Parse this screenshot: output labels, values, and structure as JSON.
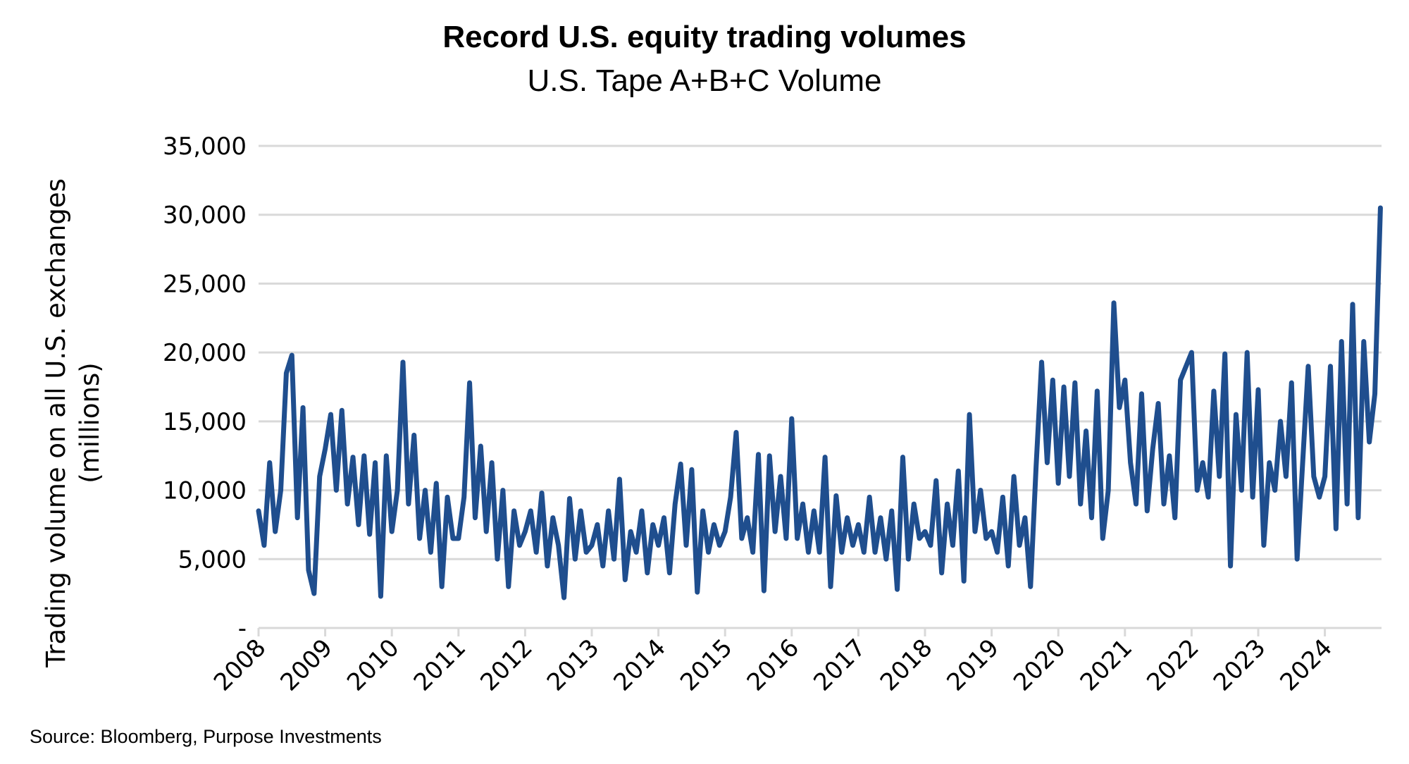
{
  "chart_data": {
    "type": "line",
    "title": "Record U.S. equity trading volumes",
    "subtitle": "U.S. Tape A+B+C Volume",
    "xlabel": "",
    "ylabel": "Trading volume on all U.S. exchanges",
    "ylabel_unit": "(millions)",
    "ylim": [
      0,
      35000
    ],
    "xlim": [
      2008,
      2024.85
    ],
    "y_ticks": [
      0,
      5000,
      10000,
      15000,
      20000,
      25000,
      30000,
      35000
    ],
    "y_tick_labels": [
      "-",
      "5,000",
      "10,000",
      "15,000",
      "20,000",
      "25,000",
      "30,000",
      "35,000"
    ],
    "x_tick_labels": [
      "2008",
      "2009",
      "2010",
      "2011",
      "2012",
      "2013",
      "2014",
      "2015",
      "2016",
      "2017",
      "2018",
      "2019",
      "2020",
      "2021",
      "2022",
      "2023",
      "2024"
    ],
    "grid": "horizontal",
    "legend": "none",
    "line_color": "#1f4e8e",
    "grid_color": "#d9d9d9",
    "series_by_year_monthly": [
      {
        "year": 2008,
        "values": [
          8500,
          6000,
          12000,
          7000,
          10000,
          18500,
          19800,
          8000,
          16000,
          4200,
          2500,
          11000
        ]
      },
      {
        "year": 2009,
        "values": [
          13000,
          15500,
          10000,
          15800,
          9000,
          12400,
          7500,
          12500,
          6800,
          12000,
          2300,
          12500
        ]
      },
      {
        "year": 2010,
        "values": [
          7000,
          10000,
          19300,
          9000,
          14000,
          6500,
          10000,
          5500,
          10500,
          3000,
          9500,
          6500
        ]
      },
      {
        "year": 2011,
        "values": [
          6500,
          9500,
          17800,
          8000,
          13200,
          7000,
          12000,
          5000,
          10000,
          3000,
          8500,
          6000
        ]
      },
      {
        "year": 2012,
        "values": [
          7000,
          8500,
          5500,
          9800,
          4500,
          8000,
          6000,
          2200,
          9400,
          5000,
          8500,
          5500
        ]
      },
      {
        "year": 2013,
        "values": [
          6000,
          7500,
          4500,
          8500,
          5000,
          10800,
          3500,
          7000,
          5500,
          8500,
          4000,
          7500
        ]
      },
      {
        "year": 2014,
        "values": [
          6000,
          8000,
          4000,
          9000,
          11900,
          6000,
          11500,
          2600,
          8500,
          5500,
          7500,
          6000
        ]
      },
      {
        "year": 2015,
        "values": [
          7000,
          9500,
          14200,
          6500,
          8000,
          5500,
          12600,
          2700,
          12500,
          7000,
          11000,
          6500
        ]
      },
      {
        "year": 2016,
        "values": [
          15200,
          6500,
          9000,
          5500,
          8500,
          5500,
          12400,
          3000,
          9600,
          5500,
          8000,
          6000
        ]
      },
      {
        "year": 2017,
        "values": [
          7500,
          5500,
          9500,
          5500,
          8000,
          5000,
          8500,
          2800,
          12400,
          5000,
          9000,
          6500
        ]
      },
      {
        "year": 2018,
        "values": [
          7000,
          6000,
          10700,
          4000,
          9000,
          6000,
          11400,
          3400,
          15500,
          7000,
          10000,
          6500
        ]
      },
      {
        "year": 2019,
        "values": [
          7000,
          5500,
          9500,
          4500,
          11000,
          6000,
          8000,
          3000,
          11700,
          19300,
          12000,
          18000
        ]
      },
      {
        "year": 2020,
        "values": [
          10500,
          17500,
          11000,
          17800,
          9000,
          14300,
          8000,
          17200,
          6500,
          10000,
          23600,
          16000
        ]
      },
      {
        "year": 2021,
        "values": [
          18000,
          12000,
          9000,
          17000,
          8500,
          13000,
          16300,
          9000,
          12500,
          8000,
          18000,
          19000
        ]
      },
      {
        "year": 2022,
        "values": [
          20000,
          10000,
          12000,
          9500,
          17200,
          11000,
          19900,
          4500,
          15500,
          10000,
          20000,
          9500
        ]
      },
      {
        "year": 2023,
        "values": [
          17300,
          6000,
          12000,
          10000,
          15000,
          11000,
          17800,
          5000,
          12000,
          19000,
          11000,
          9500
        ]
      },
      {
        "year": 2024,
        "values": [
          11000,
          19000,
          7200,
          20800,
          9000,
          23500,
          8000,
          20800,
          13500,
          17000,
          30500
        ]
      }
    ]
  },
  "source": "Source: Bloomberg, Purpose Investments"
}
